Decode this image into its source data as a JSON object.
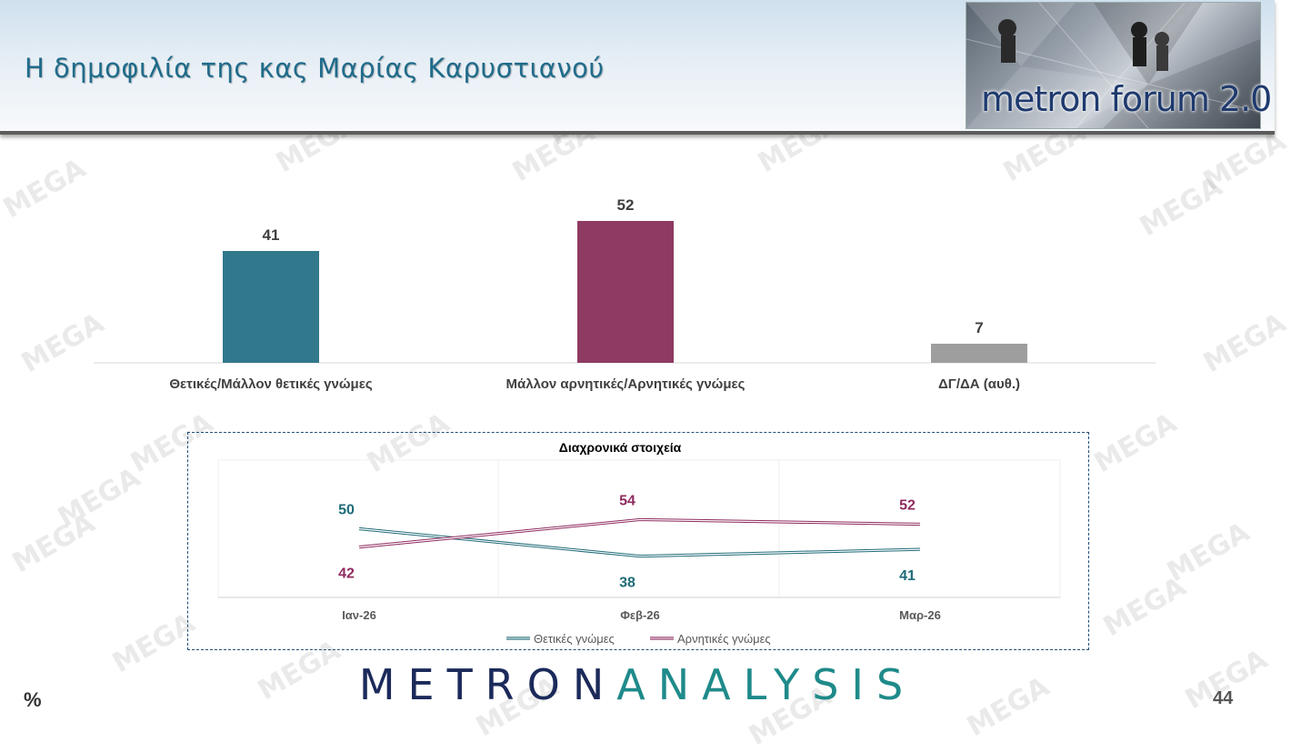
{
  "header": {
    "title": "Η δημοφιλία της κας Μαρίας Καρυστιανού",
    "logo_text": "metron forum 2.0"
  },
  "watermark_text": "MEGA",
  "chart_data": [
    {
      "type": "bar",
      "categories": [
        "Θετικές/Μάλλον θετικές γνώμες",
        "Μάλλον αρνητικές/Αρνητικές γνώμες",
        "ΔΓ/ΔΑ (αυθ.)"
      ],
      "values": [
        41,
        52,
        7
      ],
      "colors": [
        "#31788c",
        "#8e3a62",
        "#9e9e9e"
      ],
      "ylim": [
        0,
        60
      ],
      "grid": false
    },
    {
      "type": "line",
      "title": "Διαχρονικά στοιχεία",
      "categories": [
        "Ιαν-26",
        "Φεβ-26",
        "Μαρ-26"
      ],
      "series": [
        {
          "name": "Θετικές γνώμες",
          "values": [
            50,
            38,
            41
          ],
          "color": "#1f6b78"
        },
        {
          "name": "Αρνητικές γνώμες",
          "values": [
            42,
            54,
            52
          ],
          "color": "#8e2a5e"
        }
      ],
      "ylim": [
        20,
        80
      ],
      "legend": "bottom"
    }
  ],
  "footer": {
    "brand_left": "METRON",
    "brand_right": "ANALYSIS",
    "unit": "%",
    "page": "44"
  }
}
